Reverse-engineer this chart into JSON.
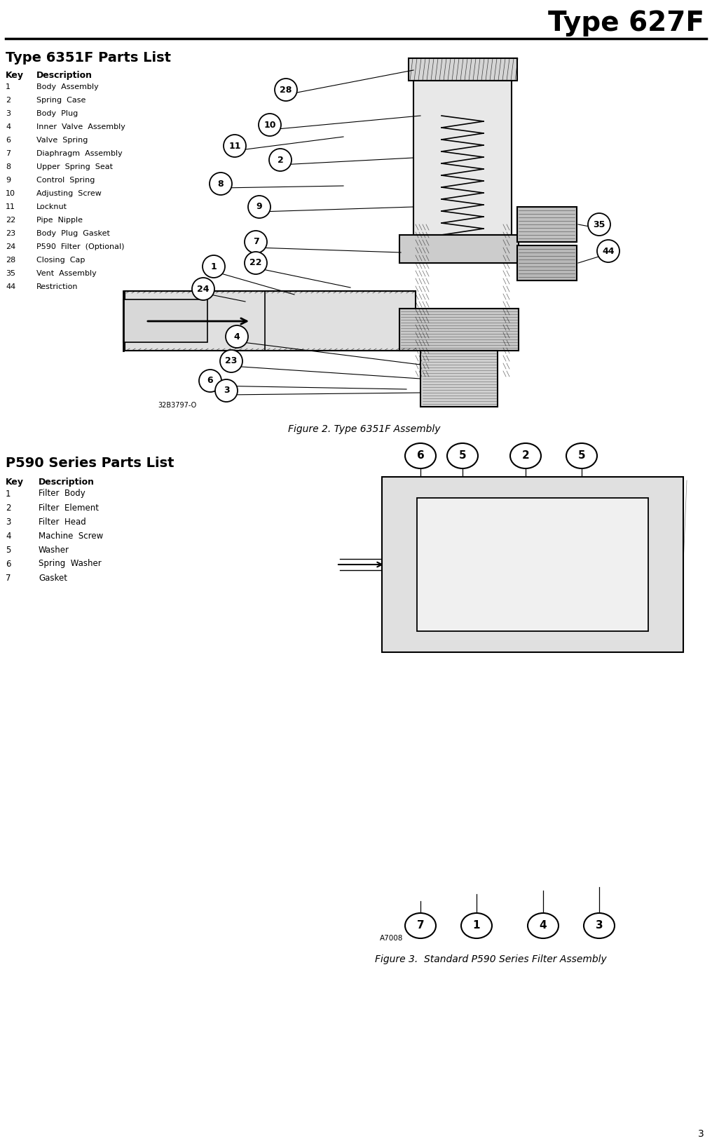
{
  "page_title": "Type 627F",
  "section1_title": "Type 6351F Parts List",
  "section1_items": [
    [
      "1",
      "Body  Assembly"
    ],
    [
      "2",
      "Spring  Case"
    ],
    [
      "3",
      "Body  Plug"
    ],
    [
      "4",
      "Inner  Valve  Assembly"
    ],
    [
      "6",
      "Valve  Spring"
    ],
    [
      "7",
      "Diaphragm  Assembly"
    ],
    [
      "8",
      "Upper  Spring  Seat"
    ],
    [
      "9",
      "Control  Spring"
    ],
    [
      "10",
      "Adjusting  Screw"
    ],
    [
      "11",
      "Locknut"
    ],
    [
      "22",
      "Pipe  Nipple"
    ],
    [
      "23",
      "Body  Plug  Gasket"
    ],
    [
      "24",
      "P590  Filter  (Optional)"
    ],
    [
      "28",
      "Closing  Cap"
    ],
    [
      "35",
      "Vent  Assembly"
    ],
    [
      "44",
      "Restriction"
    ]
  ],
  "fig2_caption": "Figure 2. Type 6351F Assembly",
  "fig2_partnum": "32B3797-O",
  "section2_title": "P590 Series Parts List",
  "section2_items": [
    [
      "1",
      "Filter  Body"
    ],
    [
      "2",
      "Filter  Element"
    ],
    [
      "3",
      "Filter  Head"
    ],
    [
      "4",
      "Machine  Screw"
    ],
    [
      "5",
      "Washer"
    ],
    [
      "6",
      "Spring  Washer"
    ],
    [
      "7",
      "Gasket"
    ]
  ],
  "fig3_caption": "Figure 3.  Standard P590 Series Filter Assembly",
  "fig3_partnum": "A7008",
  "page_number": "3",
  "bg_color": "#ffffff"
}
